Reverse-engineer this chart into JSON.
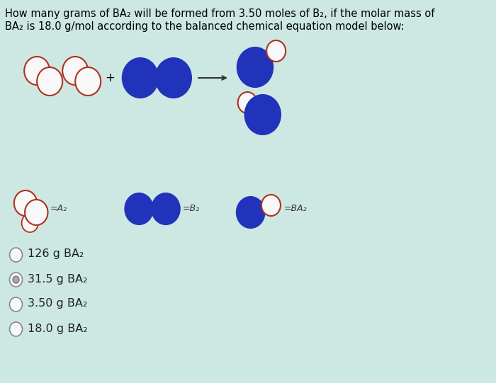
{
  "background_color": "#cde8e2",
  "title_line1": "How many grams of BA₂ will be formed from 3.50 moles of B₂, if the molar mass of",
  "title_line2": "BA₂ is 18.0 g/mol according to the balanced chemical equation model below:",
  "answer_options": [
    "126 g BA₂",
    "31.5 g BA₂",
    "3.50 g BA₂",
    "18.0 g BA₂"
  ],
  "selected_answer": 1,
  "blue_color": "#2233bb",
  "white_circle_color": "#f8f8f8",
  "white_circle_edge": "#b03020",
  "label_A2": "=A₂",
  "label_B2": "=B₂",
  "label_BA2": "=BA₂",
  "title_fontsize": 10.5,
  "answer_fontsize": 11.5
}
